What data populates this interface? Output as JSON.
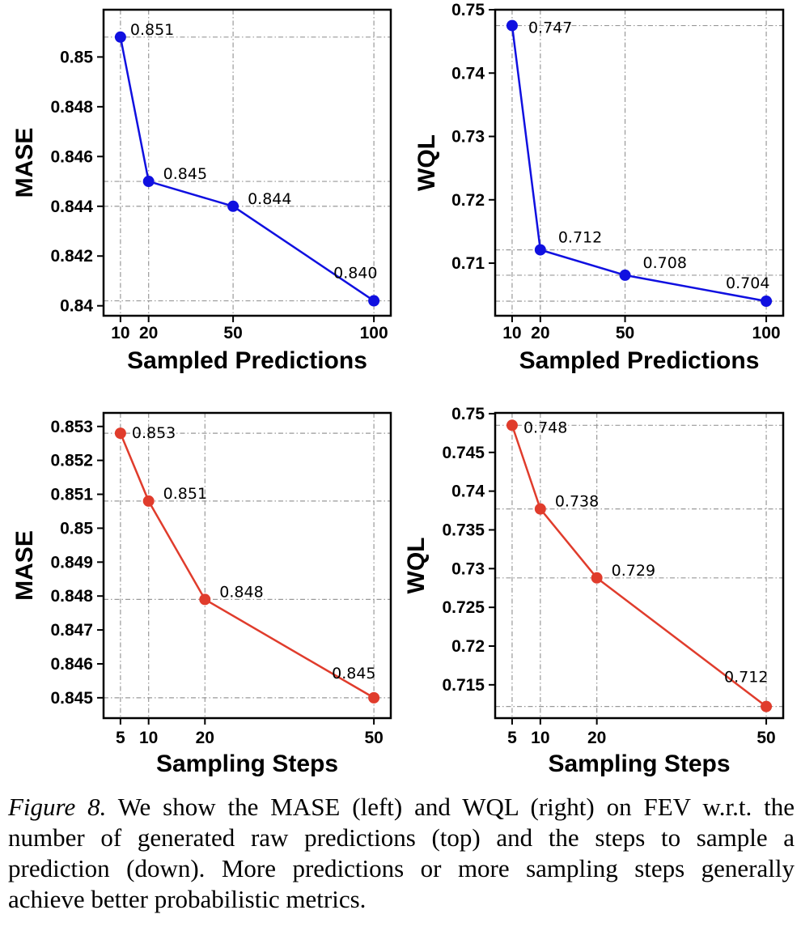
{
  "caption": {
    "label": "Figure 8.",
    "text": " We show the MASE (left) and WQL (right) on FEV w.r.t. the number of generated raw predictions (top) and the steps to sample a prediction (down). More predictions or more sampling steps generally achieve better probabilistic metrics."
  },
  "colors": {
    "top_series": "#1010e0",
    "bottom_series": "#e03c2c",
    "grid": "#999999"
  },
  "chart_data": [
    {
      "type": "line",
      "xlabel": "Sampled Predictions",
      "ylabel": "MASE",
      "x": [
        10,
        20,
        50,
        100
      ],
      "values": [
        0.8508,
        0.845,
        0.844,
        0.8402
      ],
      "labels": [
        "0.851",
        "0.845",
        "0.844",
        "0.840"
      ],
      "xticks": [
        10,
        20,
        50,
        100
      ],
      "xtick_labels": [
        "10",
        "20",
        "50",
        "100"
      ],
      "yticks": [
        0.84,
        0.842,
        0.844,
        0.846,
        0.848,
        0.85
      ],
      "ytick_labels": [
        "0.84",
        "0.842",
        "0.844",
        "0.846",
        "0.848",
        "0.85"
      ],
      "xlim": [
        4,
        106
      ],
      "ylim": [
        0.8396,
        0.8519
      ],
      "grid": true,
      "color": "#1010e0"
    },
    {
      "type": "line",
      "xlabel": "Sampled Predictions",
      "ylabel": "WQL",
      "x": [
        10,
        20,
        50,
        100
      ],
      "values": [
        0.7475,
        0.7121,
        0.7081,
        0.704
      ],
      "labels": [
        "0.747",
        "0.712",
        "0.708",
        "0.704"
      ],
      "xticks": [
        10,
        20,
        50,
        100
      ],
      "xtick_labels": [
        "10",
        "20",
        "50",
        "100"
      ],
      "yticks": [
        0.71,
        0.72,
        0.73,
        0.74,
        0.75
      ],
      "ytick_labels": [
        "0.71",
        "0.72",
        "0.73",
        "0.74",
        "0.75"
      ],
      "xlim": [
        4,
        106
      ],
      "ylim": [
        0.7017,
        0.75
      ],
      "grid": true,
      "color": "#1010e0"
    },
    {
      "type": "line",
      "xlabel": "Sampling Steps",
      "ylabel": "MASE",
      "x": [
        5,
        10,
        20,
        50
      ],
      "values": [
        0.8528,
        0.8508,
        0.8479,
        0.845
      ],
      "labels": [
        "0.853",
        "0.851",
        "0.848",
        "0.845"
      ],
      "xticks": [
        5,
        10,
        20,
        50
      ],
      "xtick_labels": [
        "5",
        "10",
        "20",
        "50"
      ],
      "yticks": [
        0.845,
        0.846,
        0.847,
        0.848,
        0.849,
        0.85,
        0.851,
        0.852,
        0.853
      ],
      "ytick_labels": [
        "0.845",
        "0.846",
        "0.847",
        "0.848",
        "0.849",
        "0.85",
        "0.851",
        "0.852",
        "0.853"
      ],
      "xlim": [
        2,
        53
      ],
      "ylim": [
        0.8444,
        0.8534
      ],
      "grid": true,
      "color": "#e03c2c"
    },
    {
      "type": "line",
      "xlabel": "Sampling Steps",
      "ylabel": "WQL",
      "x": [
        5,
        10,
        20,
        50
      ],
      "values": [
        0.7485,
        0.7377,
        0.7288,
        0.7122
      ],
      "labels": [
        "0.748",
        "0.738",
        "0.729",
        "0.712"
      ],
      "xticks": [
        5,
        10,
        20,
        50
      ],
      "xtick_labels": [
        "5",
        "10",
        "20",
        "50"
      ],
      "yticks": [
        0.715,
        0.72,
        0.725,
        0.73,
        0.735,
        0.74,
        0.745,
        0.75
      ],
      "ytick_labels": [
        "0.715",
        "0.72",
        "0.725",
        "0.73",
        "0.735",
        "0.74",
        "0.745",
        "0.75"
      ],
      "xlim": [
        2,
        53
      ],
      "ylim": [
        0.7107,
        0.7501
      ],
      "grid": true,
      "color": "#e03c2c"
    }
  ]
}
